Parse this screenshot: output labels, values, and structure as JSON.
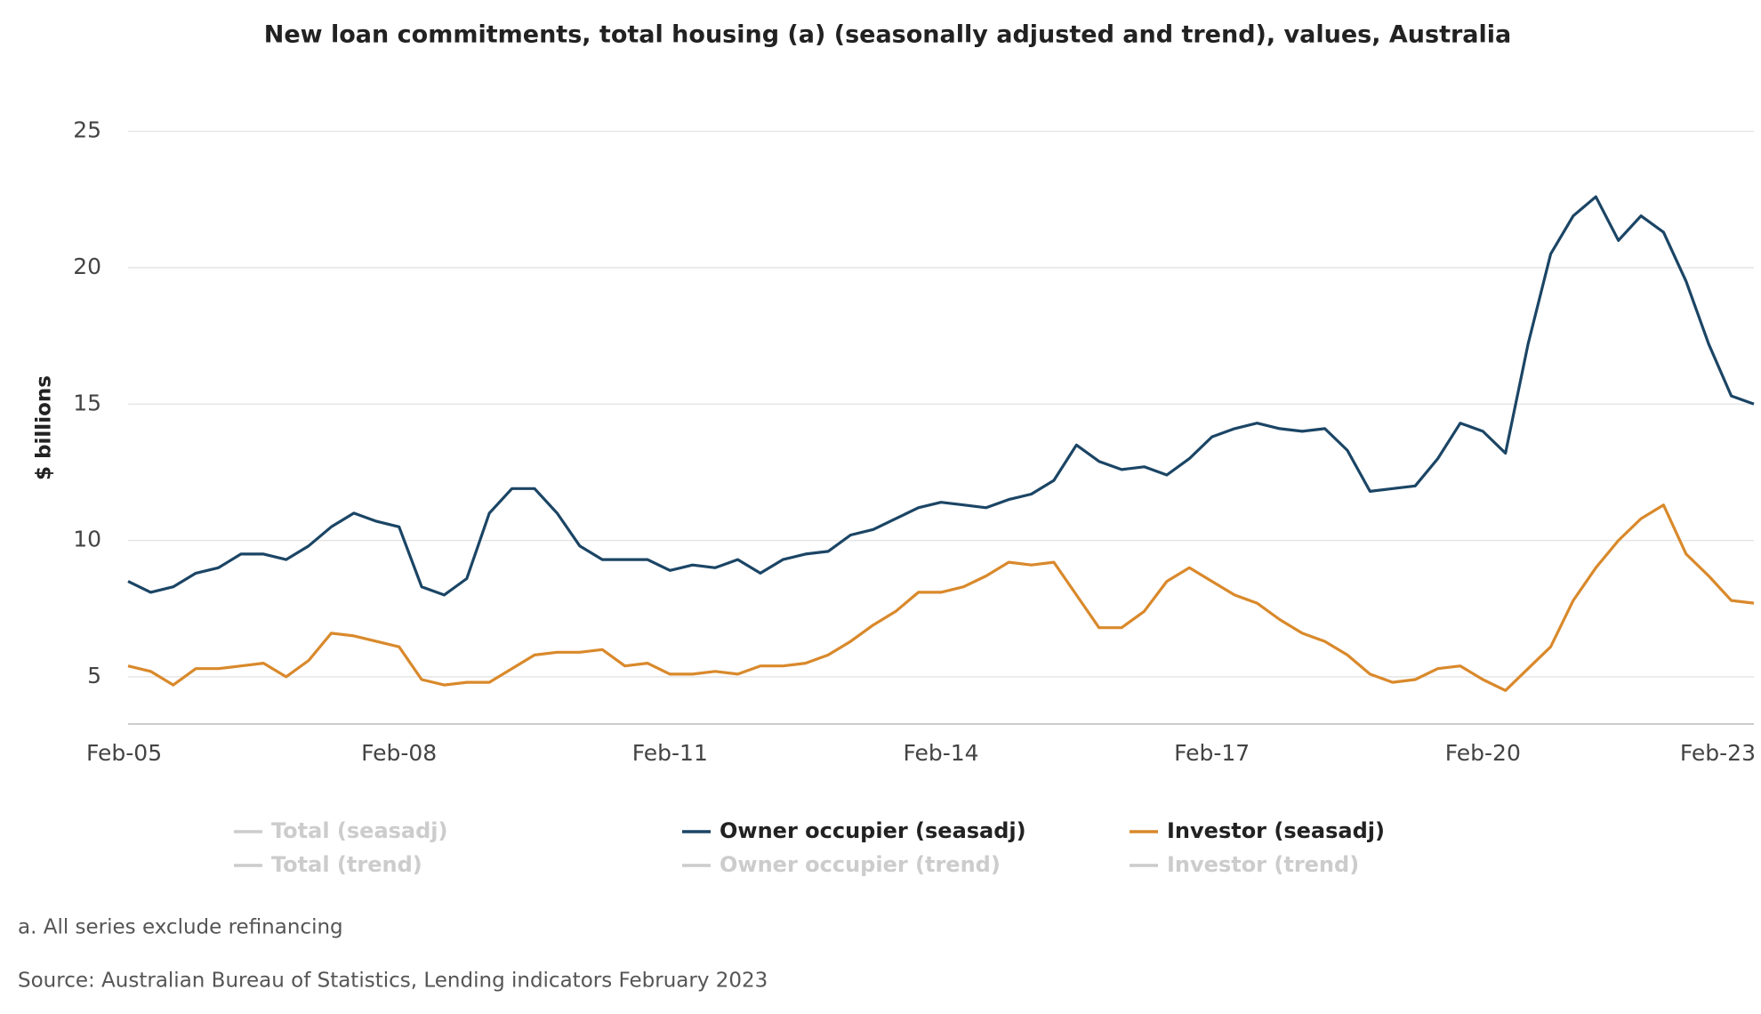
{
  "chart_data": {
    "type": "line",
    "title": "New loan commitments, total housing (a) (seasonally adjusted and trend), values, Australia",
    "ylabel": "$ billions",
    "categories": [
      "Feb-05",
      null,
      null,
      null,
      null,
      null,
      null,
      null,
      null,
      null,
      null,
      null,
      "Feb-08",
      null,
      null,
      null,
      null,
      null,
      null,
      null,
      null,
      null,
      null,
      null,
      "Feb-11",
      null,
      null,
      null,
      null,
      null,
      null,
      null,
      null,
      null,
      null,
      null,
      "Feb-14",
      null,
      null,
      null,
      null,
      null,
      null,
      null,
      null,
      null,
      null,
      null,
      "Feb-17",
      null,
      null,
      null,
      null,
      null,
      null,
      null,
      null,
      null,
      null,
      null,
      "Feb-20",
      null,
      null,
      null,
      null,
      null,
      null,
      null,
      null,
      null,
      null,
      null,
      "Feb-23"
    ],
    "series": [
      {
        "name": "Total (seasadj)",
        "color": "#cccccc",
        "visible": false
      },
      {
        "name": "Owner occupier (seasadj)",
        "color": "#1b4565",
        "visible": true,
        "values": [
          8.5,
          8.1,
          8.3,
          8.8,
          9.0,
          9.5,
          9.5,
          9.3,
          9.8,
          10.5,
          11.0,
          10.7,
          10.5,
          8.3,
          8.0,
          8.6,
          11.0,
          11.9,
          11.9,
          11.0,
          9.8,
          9.3,
          9.3,
          9.3,
          8.9,
          9.1,
          9.0,
          9.3,
          8.8,
          9.3,
          9.5,
          9.6,
          10.2,
          10.4,
          10.8,
          11.2,
          11.4,
          11.3,
          11.2,
          11.5,
          11.7,
          12.2,
          13.5,
          12.9,
          12.6,
          12.7,
          12.4,
          13.0,
          13.8,
          14.1,
          14.3,
          14.1,
          14.0,
          14.1,
          13.3,
          11.8,
          11.9,
          12.0,
          13.0,
          14.3,
          14.0,
          13.2,
          17.2,
          20.5,
          21.9,
          22.6,
          21.0,
          21.9,
          21.3,
          19.5,
          17.2,
          15.3,
          15.0
        ]
      },
      {
        "name": "Investor (seasadj)",
        "color": "#d9892b",
        "visible": true,
        "values": [
          5.4,
          5.2,
          4.7,
          5.3,
          5.3,
          5.4,
          5.5,
          5.0,
          5.6,
          6.6,
          6.5,
          6.3,
          6.1,
          4.9,
          4.7,
          4.8,
          4.8,
          5.3,
          5.8,
          5.9,
          5.9,
          6.0,
          5.4,
          5.5,
          5.1,
          5.1,
          5.2,
          5.1,
          5.4,
          5.4,
          5.5,
          5.8,
          6.3,
          6.9,
          7.4,
          8.1,
          8.1,
          8.3,
          8.7,
          9.2,
          9.1,
          9.2,
          8.0,
          6.8,
          6.8,
          7.4,
          8.5,
          9.0,
          8.5,
          8.0,
          7.7,
          7.1,
          6.6,
          6.3,
          5.8,
          5.1,
          4.8,
          4.9,
          5.3,
          5.4,
          4.9,
          4.5,
          5.3,
          6.1,
          7.8,
          9.0,
          10.0,
          10.8,
          11.3,
          9.5,
          8.7,
          7.8,
          7.7
        ]
      },
      {
        "name": "Total (trend)",
        "color": "#cccccc",
        "visible": false
      },
      {
        "name": "Owner occupier (trend)",
        "color": "#cccccc",
        "visible": false
      },
      {
        "name": "Investor (trend)",
        "color": "#cccccc",
        "visible": false
      }
    ],
    "ylim": [
      3.27,
      25.9
    ],
    "yticks": [
      5,
      10,
      15,
      20,
      25
    ],
    "grid": true,
    "footnote": "a. All series exclude refinancing",
    "source": "Source: Australian Bureau of Statistics, Lending indicators February 2023"
  }
}
